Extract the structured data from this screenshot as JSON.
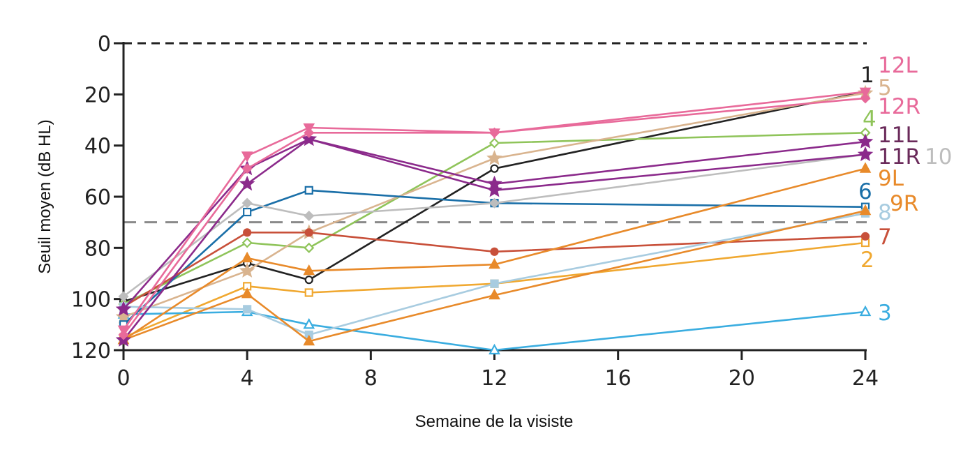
{
  "chart_data": {
    "type": "line",
    "title": "",
    "xlabel": "Semaine de la visiste",
    "ylabel": "Seuil moyen (dB HL)",
    "x": [
      0,
      4,
      6,
      12,
      24
    ],
    "xticks": [
      0,
      4,
      8,
      12,
      16,
      20,
      24
    ],
    "yticks": [
      0,
      20,
      40,
      60,
      80,
      100,
      120
    ],
    "xlim": [
      0,
      24
    ],
    "ylim": [
      0,
      120
    ],
    "y_inverted": true,
    "grid": false,
    "legend": "direct labels at right end of lines",
    "reference_lines": [
      {
        "y": 0,
        "style": "dashed",
        "color": "#222222"
      },
      {
        "y": 70,
        "style": "dashed",
        "color": "#8a8a8a"
      }
    ],
    "series": [
      {
        "name": "1",
        "color": "#222222",
        "marker": "circle-open",
        "values": [
          101,
          86,
          92.5,
          49,
          19
        ]
      },
      {
        "name": "2",
        "color": "#f0a830",
        "marker": "square-open",
        "values": [
          115,
          95,
          97.5,
          94,
          78
        ]
      },
      {
        "name": "3",
        "color": "#3aade0",
        "marker": "triangle-open",
        "values": [
          106,
          105,
          110,
          120,
          105
        ]
      },
      {
        "name": "4",
        "color": "#8fc45a",
        "marker": "diamond-open",
        "values": [
          102,
          78,
          80,
          39,
          35
        ]
      },
      {
        "name": "5",
        "color": "#d9b48f",
        "marker": "star",
        "values": [
          107,
          89,
          74,
          45,
          19.5
        ]
      },
      {
        "name": "6",
        "color": "#1a6fa8",
        "marker": "square-open",
        "values": [
          110,
          66,
          57.5,
          62.5,
          64
        ]
      },
      {
        "name": "7",
        "color": "#c8503a",
        "marker": "circle",
        "values": [
          103,
          74,
          74,
          81.5,
          75.5
        ]
      },
      {
        "name": "8",
        "color": "#a8cce0",
        "marker": "square",
        "values": [
          103,
          104,
          114,
          94,
          66.5
        ]
      },
      {
        "name": "9L",
        "color": "#e88a2a",
        "marker": "triangle",
        "values": [
          116,
          84,
          89,
          86.5,
          49
        ]
      },
      {
        "name": "9R",
        "color": "#e88a2a",
        "marker": "triangle",
        "values": [
          116,
          98,
          116.5,
          98.5,
          65.5
        ]
      },
      {
        "name": "10",
        "color": "#bdbdbd",
        "marker": "diamond",
        "values": [
          99,
          62.5,
          67.5,
          62.5,
          43.5
        ]
      },
      {
        "name": "11L",
        "color": "#8b2a8b",
        "marker": "star",
        "values": [
          116,
          55,
          37.5,
          55,
          38.5
        ]
      },
      {
        "name": "11R",
        "color": "#8b2a8b",
        "marker": "star",
        "values": [
          104,
          49,
          37.5,
          57.5,
          43.5
        ]
      },
      {
        "name": "12L",
        "color": "#e86a9a",
        "marker": "triangle-down",
        "values": [
          112,
          44,
          33,
          35,
          19
        ]
      },
      {
        "name": "12R",
        "color": "#e86a9a",
        "marker": "diamond",
        "values": [
          114,
          49,
          35,
          35,
          21.5
        ]
      }
    ],
    "label_colors": {
      "1": "#222222",
      "2": "#f0a830",
      "3": "#3aade0",
      "4": "#8fc45a",
      "5": "#d9b48f",
      "6": "#1a6fa8",
      "7": "#c8503a",
      "8": "#a8cce0",
      "9L": "#e88a2a",
      "9R": "#e88a2a",
      "10": "#bdbdbd",
      "11L": "#6a2a5a",
      "11R": "#6a2a5a",
      "12L": "#e86a9a",
      "12R": "#e86a9a"
    }
  }
}
